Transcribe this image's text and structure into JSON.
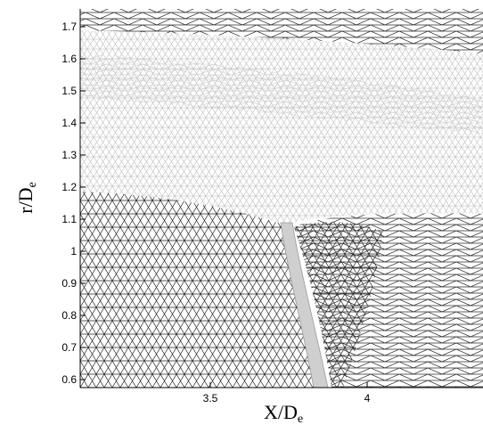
{
  "plot": {
    "xlabel_main": "X/D",
    "xlabel_sub": "e",
    "ylabel_main": "r/D",
    "ylabel_sub": "e",
    "x_ticks": [
      "3.5",
      "4"
    ],
    "y_ticks": [
      "0.6",
      "0.7",
      "0.8",
      "0.9",
      "1",
      "1.1",
      "1.2",
      "1.3",
      "1.4",
      "1.5",
      "1.6",
      "1.7"
    ]
  },
  "colors": {
    "dark_mesh": "#222222",
    "light_mesh": "#b8b8b8",
    "mid_mesh": "#7a7a7a",
    "frame": "#000000"
  }
}
